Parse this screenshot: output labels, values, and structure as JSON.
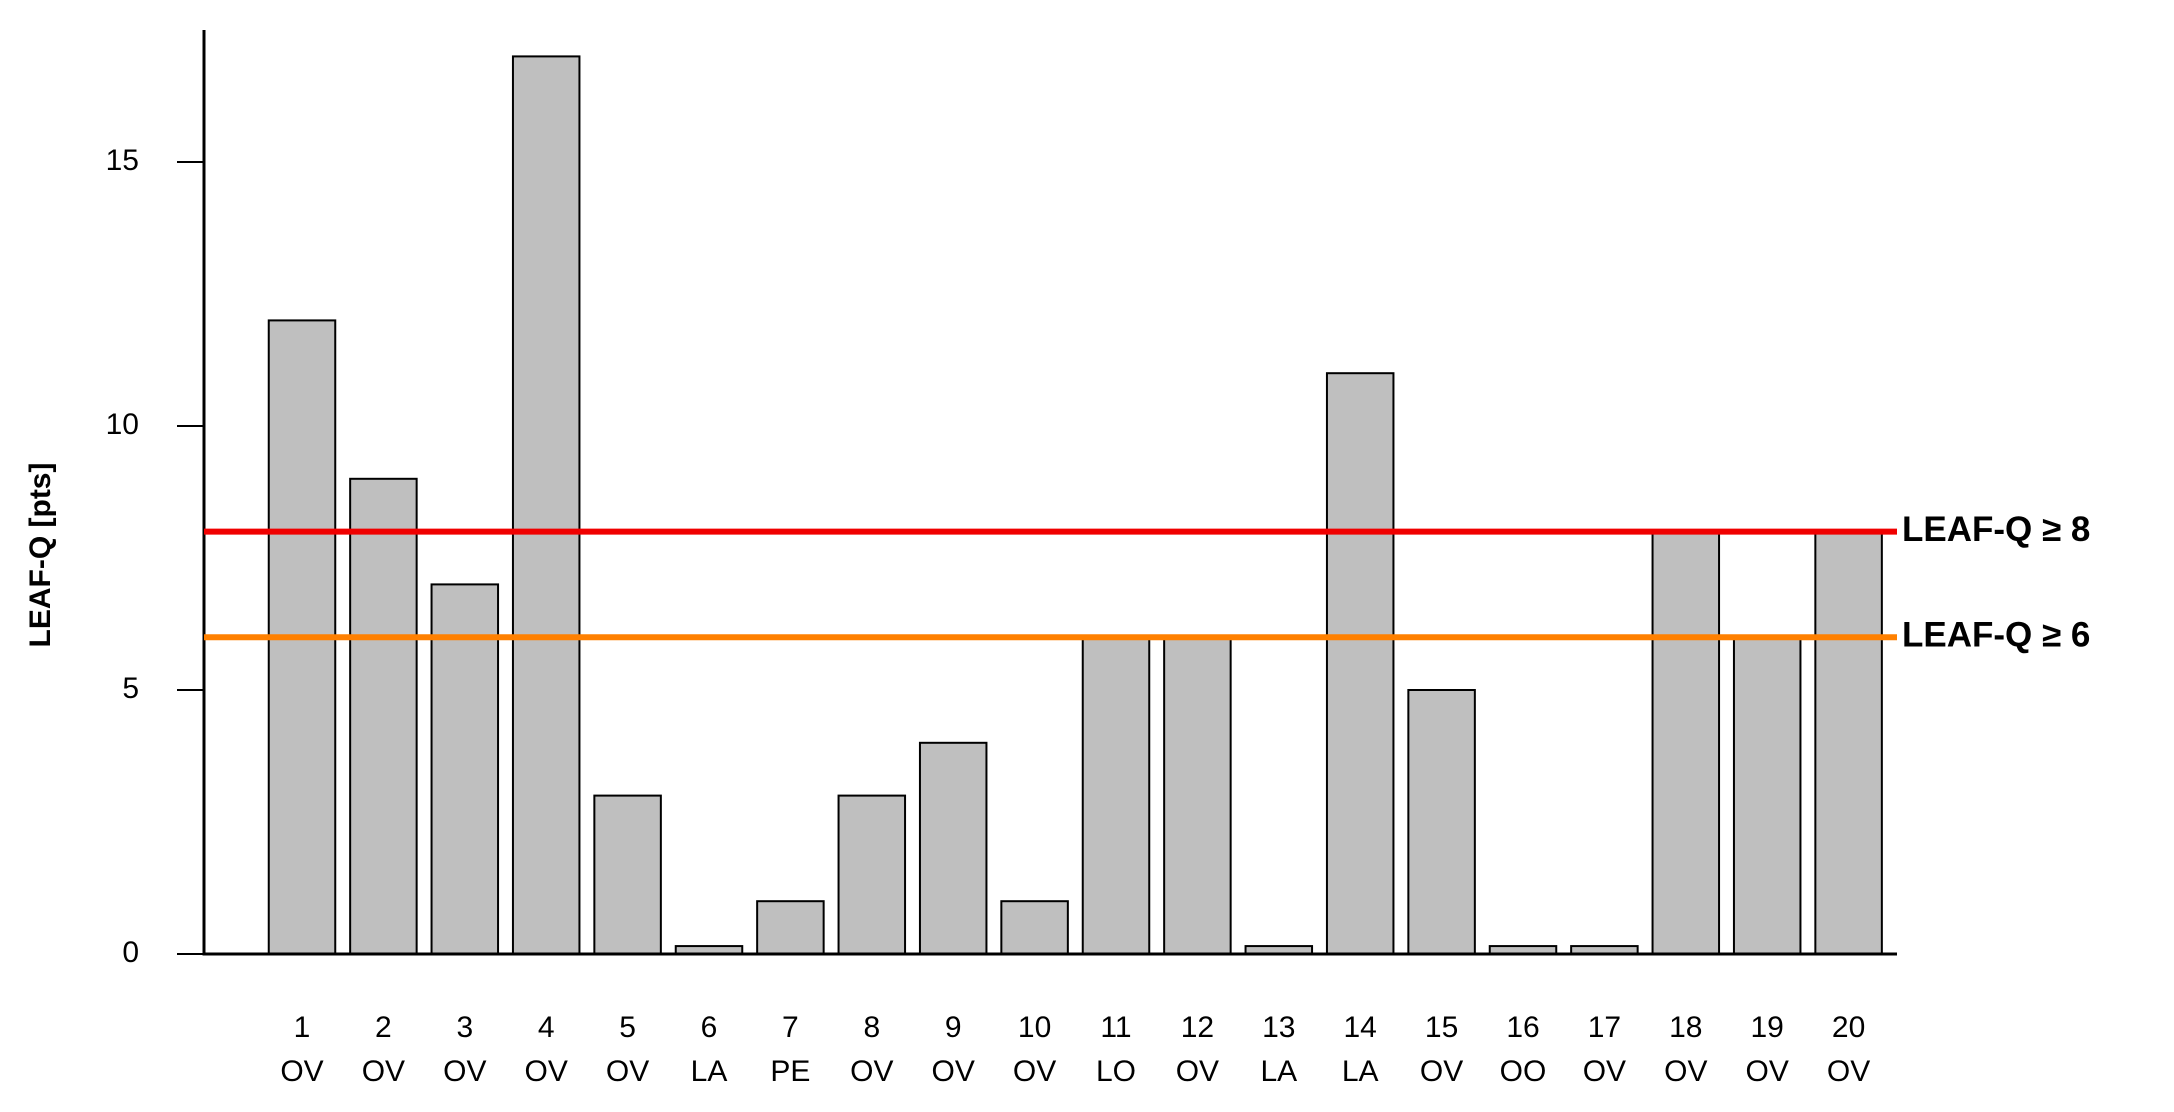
{
  "chart_data": {
    "type": "bar",
    "y_label": "LEAF-Q [pts]",
    "categories": [
      "1",
      "2",
      "3",
      "4",
      "5",
      "6",
      "7",
      "8",
      "9",
      "10",
      "11",
      "12",
      "13",
      "14",
      "15",
      "16",
      "17",
      "18",
      "19",
      "20"
    ],
    "subcategories": [
      "OV",
      "OV",
      "OV",
      "OV",
      "OV",
      "LA",
      "PE",
      "OV",
      "OV",
      "OV",
      "LO",
      "OV",
      "LA",
      "LA",
      "OV",
      "OO",
      "OV",
      "OV",
      "OV",
      "OV"
    ],
    "values": [
      12,
      9,
      7,
      17,
      3,
      0.15,
      1,
      3,
      4,
      1,
      6,
      6,
      0.15,
      11,
      5,
      0.15,
      0.15,
      8,
      6,
      8
    ],
    "color": "#bfbfbf",
    "ylim": [
      0,
      17.5
    ],
    "yticks": [
      0,
      5,
      10,
      15
    ],
    "grid": false,
    "reference_lines": [
      {
        "value": 8,
        "label": "LEAF-Q ≥ 8",
        "color": "#f00000"
      },
      {
        "value": 6,
        "label": "LEAF-Q ≥ 6",
        "color": "#ff8000"
      }
    ]
  }
}
